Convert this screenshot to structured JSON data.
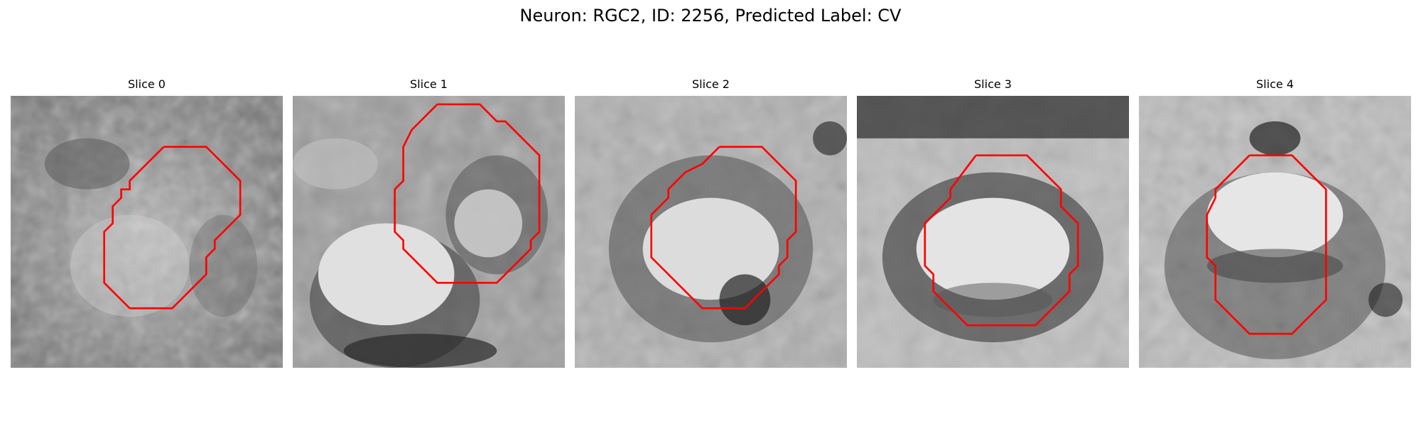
{
  "figure": {
    "title": "Neuron: RGC2, ID: 2256, Predicted Label: CV",
    "contour_color": "#ff0000"
  },
  "slices": [
    {
      "title": "Slice 0"
    },
    {
      "title": "Slice 1"
    },
    {
      "title": "Slice 2"
    },
    {
      "title": "Slice 3"
    },
    {
      "title": "Slice 4"
    }
  ]
}
